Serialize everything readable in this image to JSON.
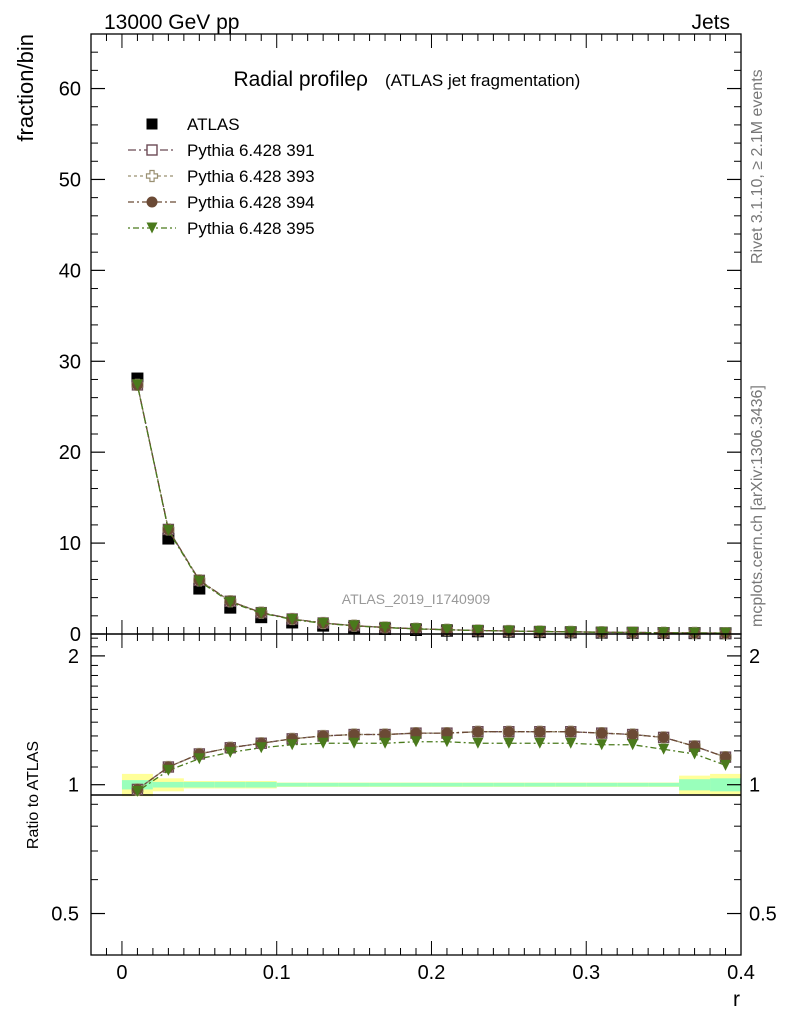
{
  "header": {
    "left": "13000 GeV pp",
    "right": "Jets"
  },
  "side_labels": {
    "rivet": "Rivet 3.1.10, ≥ 2.1M events",
    "mcplots": "mcplots.cern.ch [arXiv:1306.3436]"
  },
  "chart_data": [
    {
      "type": "line",
      "panel": "main",
      "title": "Radial profileρ",
      "subtitle": "(ATLAS jet fragmentation)",
      "xlabel": "",
      "ylabel": "fraction/bin",
      "watermark": "ATLAS_2019_I1740909",
      "xlim": [
        -0.02,
        0.4
      ],
      "ylim": [
        0,
        66
      ],
      "yticks": [
        0,
        10,
        20,
        30,
        40,
        50,
        60
      ],
      "legend_position": "top-left",
      "x": [
        0.01,
        0.03,
        0.05,
        0.07,
        0.09,
        0.11,
        0.13,
        0.15,
        0.17,
        0.19,
        0.21,
        0.23,
        0.25,
        0.27,
        0.29,
        0.31,
        0.33,
        0.35,
        0.37,
        0.39
      ],
      "series": [
        {
          "name": "ATLAS",
          "color": "#000000",
          "marker": "square-filled",
          "values": [
            28.1,
            10.5,
            5.0,
            2.9,
            1.85,
            1.27,
            0.92,
            0.7,
            0.55,
            0.44,
            0.36,
            0.3,
            0.25,
            0.21,
            0.18,
            0.15,
            0.13,
            0.11,
            0.095,
            0.08
          ]
        },
        {
          "name": "Pythia 6.428 391",
          "color": "#6b4a55",
          "marker": "square-open",
          "values": [
            27.4,
            11.5,
            5.9,
            3.6,
            2.35,
            1.65,
            1.21,
            0.92,
            0.72,
            0.58,
            0.47,
            0.39,
            0.33,
            0.28,
            0.24,
            0.2,
            0.17,
            0.14,
            0.12,
            0.1
          ]
        },
        {
          "name": "Pythia 6.428 393",
          "color": "#9a9072",
          "marker": "cross-open",
          "values": [
            27.4,
            11.5,
            5.9,
            3.6,
            2.35,
            1.65,
            1.21,
            0.92,
            0.72,
            0.58,
            0.47,
            0.39,
            0.33,
            0.28,
            0.24,
            0.2,
            0.17,
            0.14,
            0.12,
            0.1
          ]
        },
        {
          "name": "Pythia 6.428 394",
          "color": "#6b4a35",
          "marker": "circle-filled",
          "values": [
            27.4,
            11.5,
            5.9,
            3.6,
            2.35,
            1.65,
            1.21,
            0.92,
            0.72,
            0.58,
            0.47,
            0.39,
            0.33,
            0.28,
            0.24,
            0.2,
            0.17,
            0.14,
            0.12,
            0.1
          ]
        },
        {
          "name": "Pythia 6.428 395",
          "color": "#4a7a1c",
          "marker": "triangle-down-filled",
          "values": [
            27.4,
            11.4,
            5.8,
            3.5,
            2.3,
            1.6,
            1.17,
            0.89,
            0.7,
            0.56,
            0.46,
            0.38,
            0.32,
            0.27,
            0.23,
            0.19,
            0.165,
            0.135,
            0.115,
            0.095
          ]
        }
      ]
    },
    {
      "type": "line",
      "panel": "ratio",
      "xlabel": "r",
      "ylabel": "Ratio to ATLAS",
      "xlim": [
        -0.02,
        0.4
      ],
      "ylim": [
        0.4,
        2.25
      ],
      "log_y": true,
      "xticks": [
        0,
        0.1,
        0.2,
        0.3,
        0.4
      ],
      "xtick_labels": [
        "0",
        "0.1",
        "0.2",
        "0.3",
        "0.4"
      ],
      "yticks": [
        0.5,
        1,
        2
      ],
      "ytick_labels": [
        "0.5",
        "1",
        "2"
      ],
      "x": [
        0.01,
        0.03,
        0.05,
        0.07,
        0.09,
        0.11,
        0.13,
        0.15,
        0.17,
        0.19,
        0.21,
        0.23,
        0.25,
        0.27,
        0.29,
        0.31,
        0.33,
        0.35,
        0.37,
        0.39
      ],
      "band_inner": [
        0.025,
        0.015,
        0.015,
        0.015,
        0.015,
        0.01,
        0.01,
        0.01,
        0.01,
        0.01,
        0.01,
        0.01,
        0.01,
        0.01,
        0.01,
        0.01,
        0.01,
        0.01,
        0.03,
        0.035
      ],
      "band_outer": [
        0.06,
        0.035,
        0.02,
        0.02,
        0.02,
        0.012,
        0.012,
        0.012,
        0.012,
        0.012,
        0.012,
        0.012,
        0.012,
        0.012,
        0.012,
        0.012,
        0.012,
        0.012,
        0.05,
        0.06
      ],
      "series": [
        {
          "name": "Pythia 6.428 391",
          "color": "#6b4a55",
          "marker": "square-open",
          "values": [
            0.975,
            1.1,
            1.18,
            1.22,
            1.25,
            1.28,
            1.3,
            1.31,
            1.31,
            1.32,
            1.32,
            1.33,
            1.33,
            1.33,
            1.33,
            1.32,
            1.31,
            1.29,
            1.23,
            1.16
          ]
        },
        {
          "name": "Pythia 6.428 393",
          "color": "#9a9072",
          "marker": "cross-open",
          "values": [
            0.975,
            1.1,
            1.18,
            1.22,
            1.25,
            1.28,
            1.3,
            1.31,
            1.31,
            1.32,
            1.32,
            1.33,
            1.33,
            1.33,
            1.33,
            1.32,
            1.31,
            1.29,
            1.23,
            1.16
          ]
        },
        {
          "name": "Pythia 6.428 394",
          "color": "#6b4a35",
          "marker": "circle-filled",
          "values": [
            0.975,
            1.1,
            1.18,
            1.22,
            1.25,
            1.28,
            1.3,
            1.31,
            1.31,
            1.32,
            1.32,
            1.33,
            1.33,
            1.33,
            1.33,
            1.32,
            1.31,
            1.29,
            1.23,
            1.16
          ]
        },
        {
          "name": "Pythia 6.428 395",
          "color": "#4a7a1c",
          "marker": "triangle-down-filled",
          "values": [
            0.965,
            1.08,
            1.15,
            1.19,
            1.22,
            1.24,
            1.25,
            1.25,
            1.25,
            1.26,
            1.26,
            1.25,
            1.25,
            1.25,
            1.25,
            1.24,
            1.24,
            1.21,
            1.18,
            1.11
          ]
        }
      ]
    }
  ]
}
